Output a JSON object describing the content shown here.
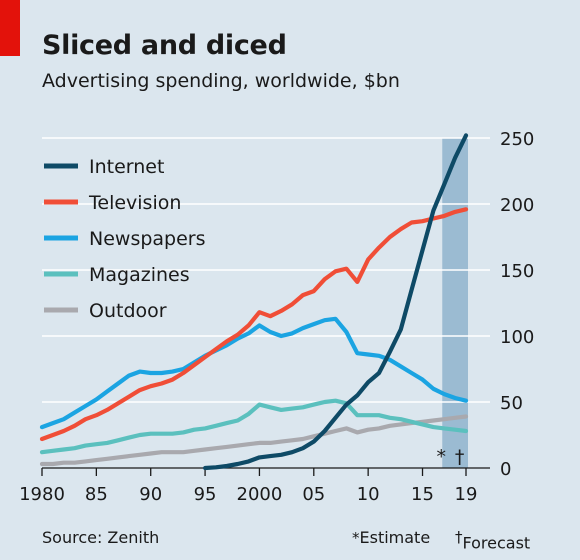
{
  "header": {
    "title": "Sliced and diced",
    "subtitle": "Advertising spending, worldwide, $bn"
  },
  "footer": {
    "source": "Source: Zenith",
    "estimate_symbol": "*",
    "estimate_label": "Estimate",
    "forecast_symbol": "†",
    "forecast_label": "Forecast"
  },
  "chart_data": {
    "type": "line",
    "ylim": [
      0,
      250
    ],
    "xlim": [
      1980,
      2019
    ],
    "y_ticks": [
      0,
      50,
      100,
      150,
      200,
      250
    ],
    "x_ticks": [
      {
        "year": 1980,
        "label": "1980"
      },
      {
        "year": 1985,
        "label": "85"
      },
      {
        "year": 1990,
        "label": "90"
      },
      {
        "year": 1995,
        "label": "95"
      },
      {
        "year": 2000,
        "label": "2000"
      },
      {
        "year": 2005,
        "label": "05"
      },
      {
        "year": 2010,
        "label": "10"
      },
      {
        "year": 2015,
        "label": "15"
      },
      {
        "year": 2019,
        "label": "19"
      }
    ],
    "shaded_region": {
      "from": 2017,
      "to": 2019,
      "color": "#8fb3cc"
    },
    "region_markers": [
      {
        "year": 2017,
        "label": "*"
      },
      {
        "year": 2018.5,
        "label": "†"
      }
    ],
    "grid": true,
    "legend_position": "top-left",
    "series": [
      {
        "name": "Internet",
        "color": "#0e4a66",
        "x": [
          1995,
          1996,
          1997,
          1998,
          1999,
          2000,
          2001,
          2002,
          2003,
          2004,
          2005,
          2006,
          2007,
          2008,
          2009,
          2010,
          2011,
          2012,
          2013,
          2014,
          2015,
          2016,
          2017,
          2018,
          2019
        ],
        "y": [
          0,
          0.5,
          1.5,
          3,
          5,
          8,
          9,
          10,
          12,
          15,
          20,
          28,
          38,
          48,
          55,
          65,
          72,
          88,
          105,
          135,
          165,
          195,
          215,
          235,
          252
        ]
      },
      {
        "name": "Television",
        "color": "#f04e37",
        "x": [
          1980,
          1981,
          1982,
          1983,
          1984,
          1985,
          1986,
          1987,
          1988,
          1989,
          1990,
          1991,
          1992,
          1993,
          1994,
          1995,
          1996,
          1997,
          1998,
          1999,
          2000,
          2001,
          2002,
          2003,
          2004,
          2005,
          2006,
          2007,
          2008,
          2009,
          2010,
          2011,
          2012,
          2013,
          2014,
          2015,
          2016,
          2017,
          2018,
          2019
        ],
        "y": [
          22,
          25,
          28,
          32,
          37,
          40,
          44,
          49,
          54,
          59,
          62,
          64,
          67,
          72,
          78,
          84,
          90,
          96,
          101,
          108,
          118,
          115,
          119,
          124,
          131,
          134,
          143,
          149,
          151,
          141,
          158,
          167,
          175,
          181,
          186,
          187,
          189,
          191,
          194,
          196
        ]
      },
      {
        "name": "Newspapers",
        "color": "#1ba4e2",
        "x": [
          1980,
          1981,
          1982,
          1983,
          1984,
          1985,
          1986,
          1987,
          1988,
          1989,
          1990,
          1991,
          1992,
          1993,
          1994,
          1995,
          1996,
          1997,
          1998,
          1999,
          2000,
          2001,
          2002,
          2003,
          2004,
          2005,
          2006,
          2007,
          2008,
          2009,
          2010,
          2011,
          2012,
          2013,
          2014,
          2015,
          2016,
          2017,
          2018,
          2019
        ],
        "y": [
          31,
          34,
          37,
          42,
          47,
          52,
          58,
          64,
          70,
          73,
          72,
          72,
          73,
          75,
          80,
          85,
          89,
          93,
          98,
          102,
          108,
          103,
          100,
          102,
          106,
          109,
          112,
          113,
          103,
          87,
          86,
          85,
          82,
          77,
          72,
          67,
          60,
          56,
          53,
          51
        ]
      },
      {
        "name": "Magazines",
        "color": "#5bc0be",
        "x": [
          1980,
          1981,
          1982,
          1983,
          1984,
          1985,
          1986,
          1987,
          1988,
          1989,
          1990,
          1991,
          1992,
          1993,
          1994,
          1995,
          1996,
          1997,
          1998,
          1999,
          2000,
          2001,
          2002,
          2003,
          2004,
          2005,
          2006,
          2007,
          2008,
          2009,
          2010,
          2011,
          2012,
          2013,
          2014,
          2015,
          2016,
          2017,
          2018,
          2019
        ],
        "y": [
          12,
          13,
          14,
          15,
          17,
          18,
          19,
          21,
          23,
          25,
          26,
          26,
          26,
          27,
          29,
          30,
          32,
          34,
          36,
          41,
          48,
          46,
          44,
          45,
          46,
          48,
          50,
          51,
          49,
          40,
          40,
          40,
          38,
          37,
          35,
          33,
          31,
          30,
          29,
          28
        ]
      },
      {
        "name": "Outdoor",
        "color": "#a9a9ae",
        "x": [
          1980,
          1981,
          1982,
          1983,
          1984,
          1985,
          1986,
          1987,
          1988,
          1989,
          1990,
          1991,
          1992,
          1993,
          1994,
          1995,
          1996,
          1997,
          1998,
          1999,
          2000,
          2001,
          2002,
          2003,
          2004,
          2005,
          2006,
          2007,
          2008,
          2009,
          2010,
          2011,
          2012,
          2013,
          2014,
          2015,
          2016,
          2017,
          2018,
          2019
        ],
        "y": [
          3,
          3,
          4,
          4,
          5,
          6,
          7,
          8,
          9,
          10,
          11,
          12,
          12,
          12,
          13,
          14,
          15,
          16,
          17,
          18,
          19,
          19,
          20,
          21,
          22,
          24,
          26,
          28,
          30,
          27,
          29,
          30,
          32,
          33,
          34,
          35,
          36,
          37,
          38,
          39
        ]
      }
    ]
  }
}
